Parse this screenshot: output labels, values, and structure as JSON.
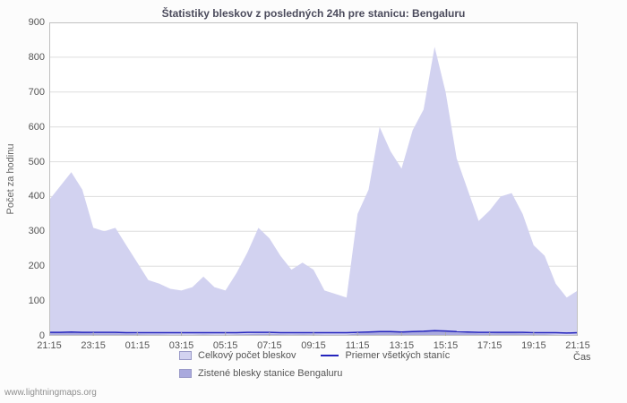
{
  "title": "Štatistiky bleskov z posledných 24h pre stanicu: Bengaluru",
  "watermark": "www.lightningmaps.org",
  "legend": {
    "items": [
      {
        "label": "Celkový počet bleskov",
        "type": "area",
        "color": "#d2d2f0"
      },
      {
        "label": "Priemer všetkých staníc",
        "type": "line",
        "color": "#2424bd"
      },
      {
        "label": "Zistené blesky stanice Bengaluru",
        "type": "area",
        "color": "#a9a9dd"
      }
    ]
  },
  "chart_data": {
    "type": "area",
    "title": "Štatistiky bleskov z posledných 24h pre stanicu: Bengaluru",
    "xlabel": "Čas",
    "ylabel": "Počet za hodinu",
    "ylim": [
      0,
      900
    ],
    "yticks": [
      0,
      100,
      200,
      300,
      400,
      500,
      600,
      700,
      800,
      900
    ],
    "xticklabels": [
      "21:15",
      "23:15",
      "01:15",
      "03:15",
      "05:15",
      "07:15",
      "09:15",
      "11:15",
      "13:15",
      "15:15",
      "17:15",
      "19:15",
      "21:15"
    ],
    "x_interval_minutes": 30,
    "grid": true,
    "grid_color": "#dedede",
    "frame_color": "#c0c0c0",
    "legend_position": "bottom",
    "series": [
      {
        "name": "Celkový počet bleskov",
        "color": "#d2d2f0",
        "values": [
          390,
          430,
          470,
          420,
          310,
          300,
          310,
          260,
          210,
          160,
          150,
          135,
          130,
          140,
          170,
          140,
          130,
          180,
          240,
          310,
          280,
          230,
          190,
          210,
          190,
          130,
          120,
          110,
          350,
          420,
          600,
          530,
          480,
          590,
          650,
          830,
          700,
          510,
          420,
          330,
          360,
          400,
          410,
          350,
          260,
          230,
          150,
          110,
          130
        ]
      },
      {
        "name": "Zistené blesky stanice Bengaluru",
        "color": "#a9a9dd",
        "values": [
          8,
          9,
          10,
          9,
          7,
          7,
          7,
          6,
          5,
          4,
          4,
          3,
          3,
          3,
          4,
          3,
          3,
          4,
          5,
          6,
          6,
          5,
          4,
          5,
          4,
          3,
          3,
          3,
          7,
          9,
          12,
          11,
          10,
          12,
          13,
          17,
          14,
          10,
          9,
          7,
          7,
          8,
          8,
          7,
          5,
          5,
          3,
          2,
          3
        ]
      },
      {
        "name": "Priemer všetkých staníc",
        "color": "#2424bd",
        "values": [
          10,
          10,
          11,
          10,
          10,
          10,
          10,
          9,
          9,
          9,
          9,
          9,
          9,
          9,
          9,
          9,
          9,
          9,
          10,
          10,
          10,
          9,
          9,
          9,
          9,
          9,
          9,
          9,
          10,
          11,
          12,
          12,
          11,
          12,
          13,
          15,
          14,
          12,
          11,
          10,
          10,
          10,
          10,
          10,
          9,
          9,
          9,
          8,
          9
        ]
      }
    ]
  }
}
